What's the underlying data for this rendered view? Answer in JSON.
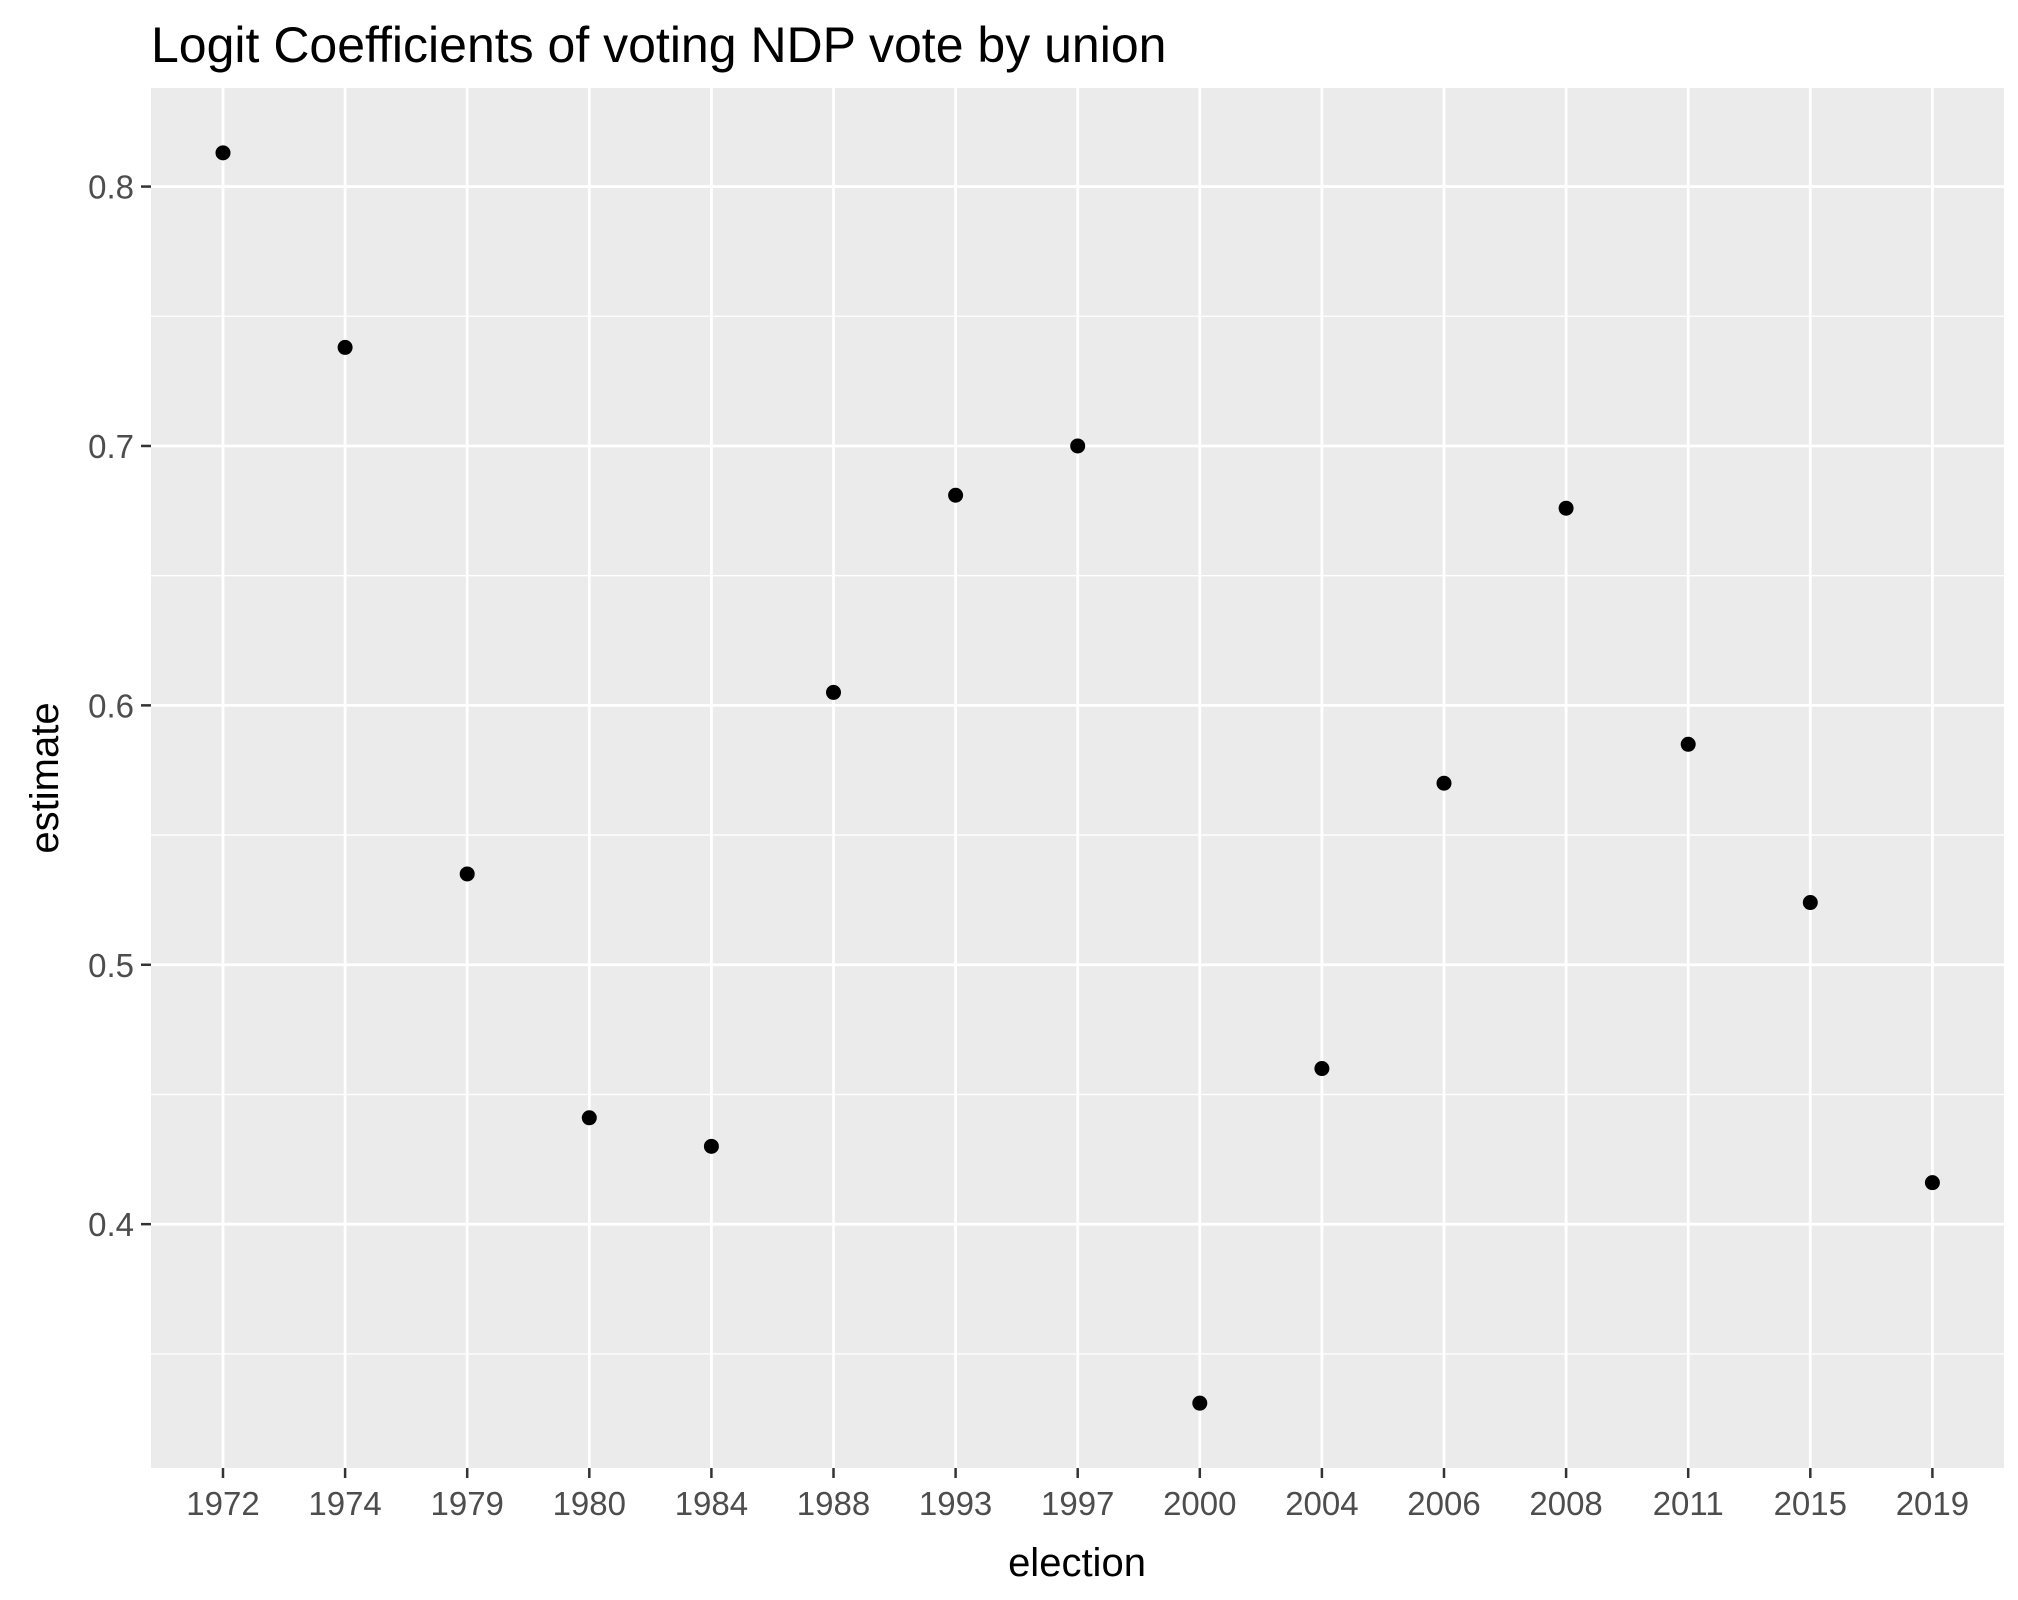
{
  "chart_data": {
    "type": "scatter",
    "title": "Logit Coefficients of voting NDP vote by union",
    "xlabel": "election",
    "ylabel": "estimate",
    "x_scale": "categorical",
    "categories": [
      "1972",
      "1974",
      "1979",
      "1980",
      "1984",
      "1988",
      "1993",
      "1997",
      "2000",
      "2004",
      "2006",
      "2008",
      "2011",
      "2015",
      "2019"
    ],
    "series": [
      {
        "values": [
          0.813,
          0.738,
          0.535,
          0.441,
          0.43,
          0.605,
          0.681,
          0.7,
          0.331,
          0.46,
          0.57,
          0.676,
          0.585,
          0.524,
          0.416
        ]
      }
    ],
    "ylim": [
      0.306,
      0.838
    ],
    "y_ticks": [
      "0.4",
      "0.5",
      "0.6",
      "0.7",
      "0.8"
    ],
    "grid": true,
    "legend": "none",
    "colors": {
      "panel_background": "#ebebeb",
      "grid_line": "#ffffff",
      "point": "#000000",
      "tick_label": "#4d4d4d",
      "text": "#000000"
    }
  }
}
